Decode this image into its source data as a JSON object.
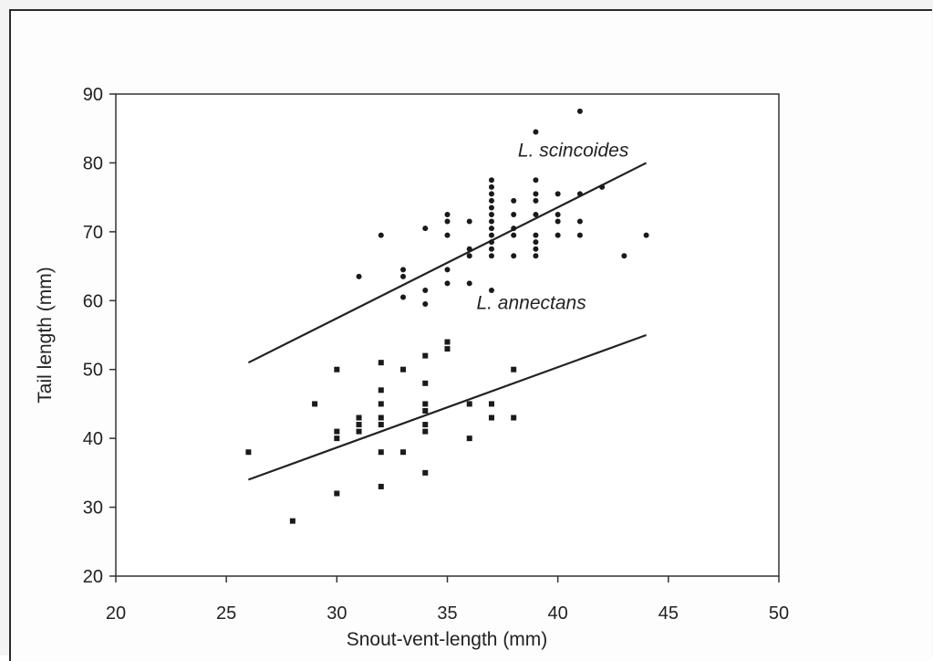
{
  "chart_data": {
    "type": "scatter",
    "xlabel": "Snout-vent-length (mm)",
    "ylabel": "Tail length (mm)",
    "xlim": [
      20,
      50
    ],
    "ylim": [
      20,
      90
    ],
    "xticks": [
      20,
      25,
      30,
      35,
      40,
      45,
      50
    ],
    "yticks": [
      20,
      30,
      40,
      50,
      60,
      70,
      80,
      90
    ],
    "grid": false,
    "legend": "none",
    "series": [
      {
        "name": "L. scincoides",
        "marker": "circle",
        "points": [
          [
            31,
            63.5
          ],
          [
            32,
            69.5
          ],
          [
            33,
            60.5
          ],
          [
            33,
            63.5
          ],
          [
            33,
            64.5
          ],
          [
            34,
            59.5
          ],
          [
            34,
            61.5
          ],
          [
            34,
            70.5
          ],
          [
            35,
            62.5
          ],
          [
            35,
            64.5
          ],
          [
            35,
            69.5
          ],
          [
            35,
            71.5
          ],
          [
            35,
            72.5
          ],
          [
            36,
            62.5
          ],
          [
            36,
            66.5
          ],
          [
            36,
            67.5
          ],
          [
            36,
            71.5
          ],
          [
            37,
            61.5
          ],
          [
            37,
            66.5
          ],
          [
            37,
            67.5
          ],
          [
            37,
            68.5
          ],
          [
            37,
            69.5
          ],
          [
            37,
            70.5
          ],
          [
            37,
            71.5
          ],
          [
            37,
            72.5
          ],
          [
            37,
            73.5
          ],
          [
            37,
            74.5
          ],
          [
            37,
            75.5
          ],
          [
            37,
            76.5
          ],
          [
            37,
            77.5
          ],
          [
            38,
            66.5
          ],
          [
            38,
            69.5
          ],
          [
            38,
            70.5
          ],
          [
            38,
            72.5
          ],
          [
            38,
            74.5
          ],
          [
            39,
            66.5
          ],
          [
            39,
            67.5
          ],
          [
            39,
            68.5
          ],
          [
            39,
            69.5
          ],
          [
            39,
            72.5
          ],
          [
            39,
            74.5
          ],
          [
            39,
            75.5
          ],
          [
            39,
            77.5
          ],
          [
            39,
            84.5
          ],
          [
            40,
            69.5
          ],
          [
            40,
            71.5
          ],
          [
            40,
            72.5
          ],
          [
            40,
            75.5
          ],
          [
            41,
            69.5
          ],
          [
            41,
            71.5
          ],
          [
            41,
            75.5
          ],
          [
            41,
            87.5
          ],
          [
            42,
            76.5
          ],
          [
            43,
            66.5
          ],
          [
            44,
            69.5
          ]
        ],
        "fit": [
          [
            26,
            51
          ],
          [
            44,
            80
          ]
        ]
      },
      {
        "name": "L. annectans",
        "marker": "square",
        "points": [
          [
            26,
            38
          ],
          [
            28,
            28
          ],
          [
            29,
            45
          ],
          [
            30,
            32
          ],
          [
            30,
            40
          ],
          [
            30,
            41
          ],
          [
            30,
            50
          ],
          [
            31,
            41
          ],
          [
            31,
            42
          ],
          [
            31,
            43
          ],
          [
            32,
            33
          ],
          [
            32,
            38
          ],
          [
            32,
            42
          ],
          [
            32,
            43
          ],
          [
            32,
            45
          ],
          [
            32,
            47
          ],
          [
            32,
            51
          ],
          [
            33,
            38
          ],
          [
            33,
            50
          ],
          [
            34,
            35
          ],
          [
            34,
            41
          ],
          [
            34,
            42
          ],
          [
            34,
            44
          ],
          [
            34,
            45
          ],
          [
            34,
            48
          ],
          [
            34,
            52
          ],
          [
            35,
            53
          ],
          [
            35,
            54
          ],
          [
            36,
            40
          ],
          [
            36,
            45
          ],
          [
            37,
            43
          ],
          [
            37,
            45
          ],
          [
            38,
            43
          ],
          [
            38,
            50
          ]
        ],
        "fit": [
          [
            26,
            34
          ],
          [
            44,
            55
          ]
        ]
      }
    ],
    "annotations": [
      {
        "text": "L. scincoides",
        "x": 40.7,
        "y": 80.9
      },
      {
        "text": "L. annectans",
        "x": 38.8,
        "y": 58.8
      }
    ]
  }
}
